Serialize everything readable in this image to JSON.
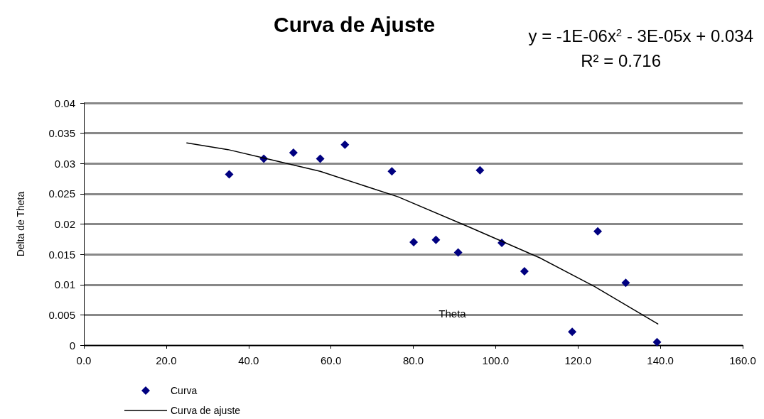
{
  "chart_data": {
    "type": "scatter",
    "title": "Curva de Ajuste",
    "xlabel": "Theta",
    "ylabel": "Delta de Theta",
    "annotations": [
      "y = -1E-06x$^{2}$ - 3E-05x + 0.034",
      "R² = 0.716"
    ],
    "series": [
      {
        "name": "Curva",
        "color": "#000080",
        "marker": "diamond",
        "x": [
          35.3,
          43.7,
          50.9,
          57.4,
          63.4,
          74.8,
          80.1,
          85.5,
          90.9,
          96.2,
          101.5,
          107.0,
          118.6,
          124.8,
          131.6,
          139.2
        ],
        "values": [
          0.0282,
          0.0308,
          0.0318,
          0.0308,
          0.0331,
          0.0287,
          0.017,
          0.0174,
          0.0153,
          0.0289,
          0.0169,
          0.0122,
          0.0022,
          0.0188,
          0.0103,
          0.0005
        ]
      },
      {
        "name": "Curva de ajuste",
        "type": "line",
        "color": "#000000",
        "marker": "none",
        "line_style": "solid",
        "x": [
          25,
          35,
          43.7,
          57.4,
          76.3,
          93.6,
          110.8,
          124,
          139.4
        ],
        "values": [
          0.0334,
          0.0323,
          0.0309,
          0.0287,
          0.0245,
          0.0195,
          0.0144,
          0.0097,
          0.0035
        ]
      }
    ],
    "xlim": [
      0,
      160
    ],
    "xticks": [
      {
        "value": 0,
        "label": "0.0"
      },
      {
        "value": 20,
        "label": "20.0"
      },
      {
        "value": 40,
        "label": "40.0"
      },
      {
        "value": 60,
        "label": "60.0"
      },
      {
        "value": 80,
        "label": "80.0"
      },
      {
        "value": 100,
        "label": "100.0"
      },
      {
        "value": 120,
        "label": "120.0"
      },
      {
        "value": 140,
        "label": "140.0"
      },
      {
        "value": 160,
        "label": "160.0"
      }
    ],
    "ylim": [
      0,
      0.04
    ],
    "yticks": [
      0,
      0.005,
      0.01,
      0.015,
      0.02,
      0.025,
      0.03,
      0.035,
      0.04
    ],
    "grid": "y",
    "legend": "bottom left"
  }
}
